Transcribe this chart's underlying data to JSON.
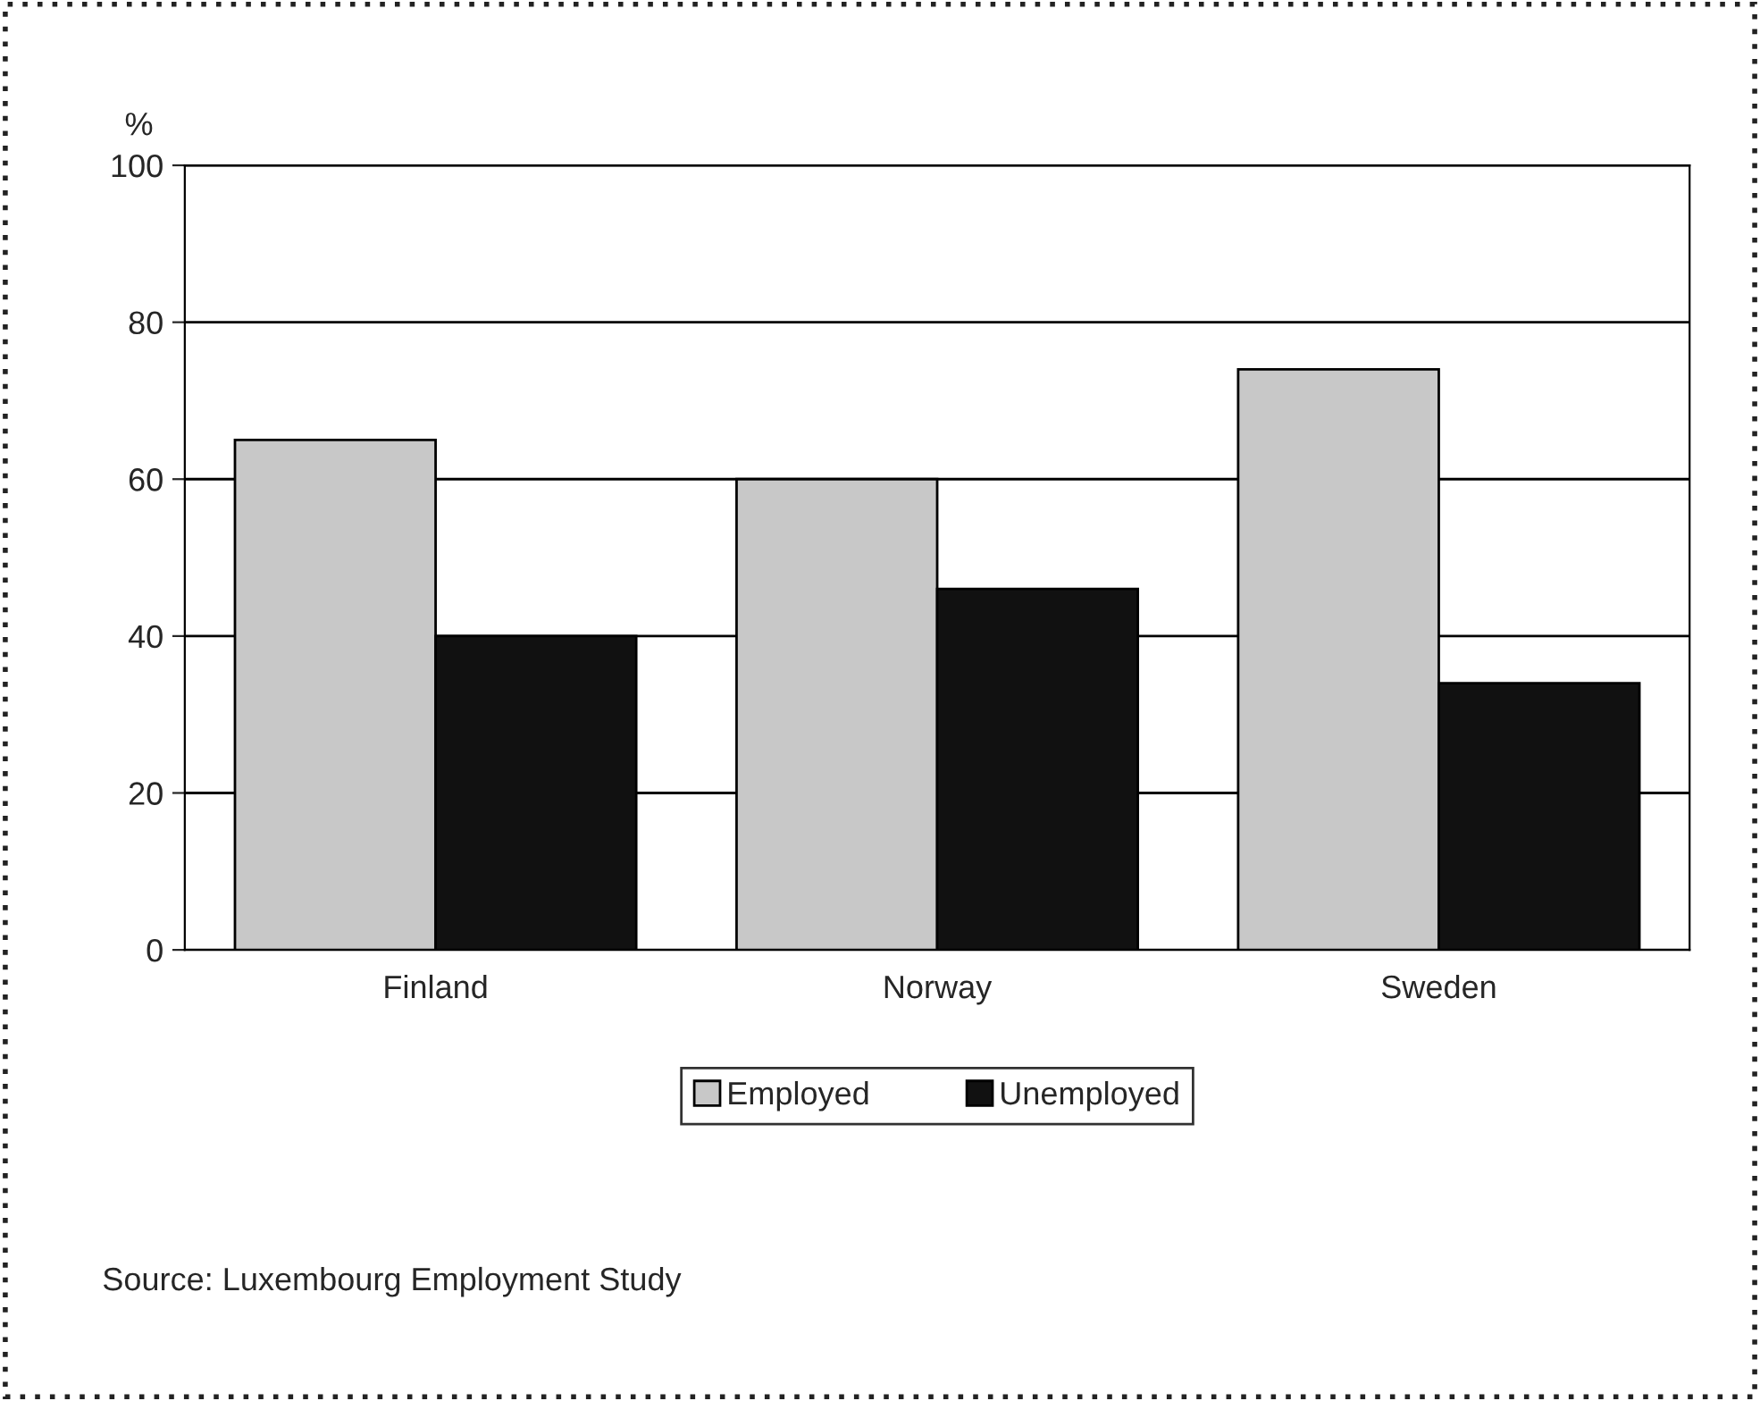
{
  "chart_data": {
    "type": "bar",
    "ylabel": "%",
    "categories": [
      "Finland",
      "Norway",
      "Sweden"
    ],
    "series": [
      {
        "name": "Employed",
        "color": "#c8c8c8",
        "values": [
          65,
          60,
          74
        ]
      },
      {
        "name": "Unemployed",
        "color": "#111111",
        "values": [
          40,
          46,
          34
        ]
      }
    ],
    "ylim": [
      0,
      100
    ],
    "yticks": [
      0,
      20,
      40,
      60,
      80,
      100
    ],
    "grid": "y",
    "legend": "bottom",
    "annotations": [
      "Source: Luxembourg Employment Study"
    ]
  }
}
